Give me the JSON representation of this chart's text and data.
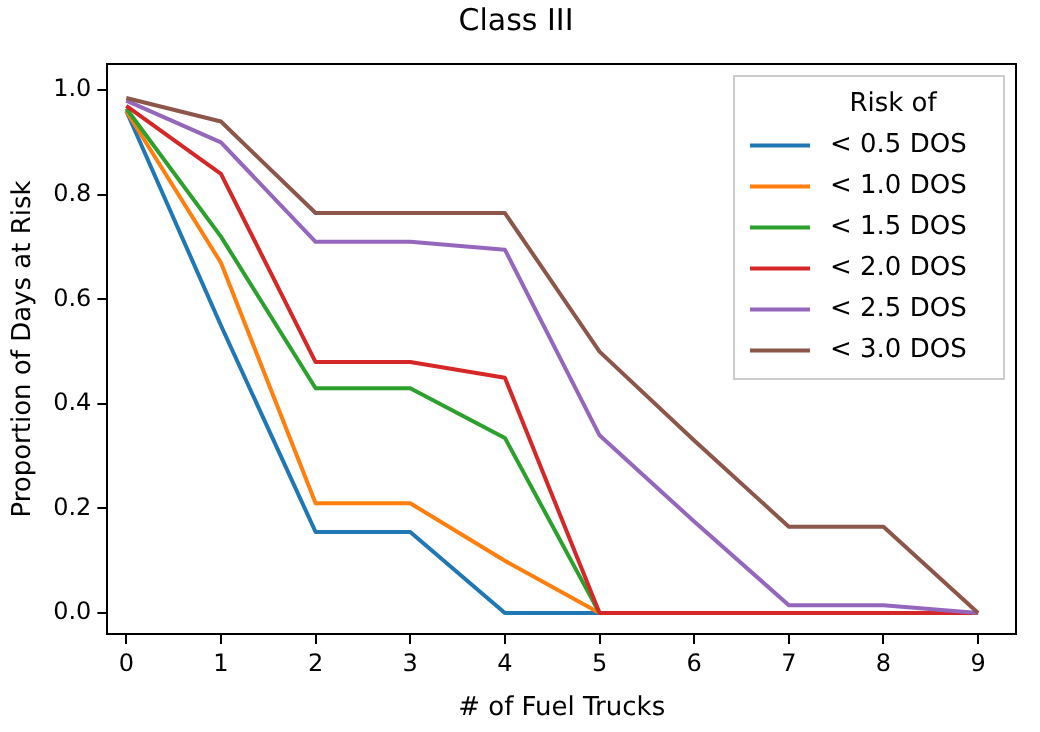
{
  "chart_data": {
    "type": "line",
    "title": "Class III",
    "xlabel": "# of Fuel Trucks",
    "ylabel": "Proportion of Days at Risk",
    "legend_title": "Risk of",
    "legend": "top right",
    "grid": false,
    "marker": "none",
    "line_style": "solid",
    "x": [
      0,
      1,
      2,
      3,
      4,
      5,
      6,
      7,
      8,
      9
    ],
    "xlim": [
      -0.2,
      9.4
    ],
    "xticks": [
      0,
      1,
      2,
      3,
      4,
      5,
      6,
      7,
      8,
      9
    ],
    "ylim": [
      -0.04,
      1.05
    ],
    "yticks": [
      {
        "value": 0,
        "label": "0.0"
      },
      0.2,
      0.4,
      0.6,
      0.8,
      {
        "value": 1,
        "label": "1.0"
      }
    ],
    "series": [
      {
        "name": "< 0.5 DOS",
        "color": "#1f77b4",
        "values": [
          0.96,
          0.55,
          0.155,
          0.155,
          0.0,
          0.0,
          null,
          null,
          null,
          null
        ]
      },
      {
        "name": "< 1.0 DOS",
        "color": "#ff7f0e",
        "values": [
          0.96,
          0.67,
          0.21,
          0.21,
          0.1,
          0.0,
          null,
          null,
          null,
          null
        ]
      },
      {
        "name": "< 1.5 DOS",
        "color": "#2ca02c",
        "values": [
          0.965,
          0.72,
          0.43,
          0.43,
          0.335,
          0.0,
          null,
          null,
          null,
          null
        ]
      },
      {
        "name": "< 2.0 DOS",
        "color": "#d62728",
        "values": [
          0.97,
          0.84,
          0.48,
          0.48,
          0.45,
          0.0,
          0.0,
          0.0,
          0.0,
          0.0
        ]
      },
      {
        "name": "< 2.5 DOS",
        "color": "#9467bd",
        "values": [
          0.98,
          0.9,
          0.71,
          0.71,
          0.695,
          0.34,
          0.175,
          0.015,
          0.015,
          0.0
        ]
      },
      {
        "name": "< 3.0 DOS",
        "color": "#8c564b",
        "values": [
          0.985,
          0.94,
          0.765,
          0.765,
          0.765,
          0.5,
          0.33,
          0.165,
          0.165,
          0.0
        ]
      }
    ]
  }
}
